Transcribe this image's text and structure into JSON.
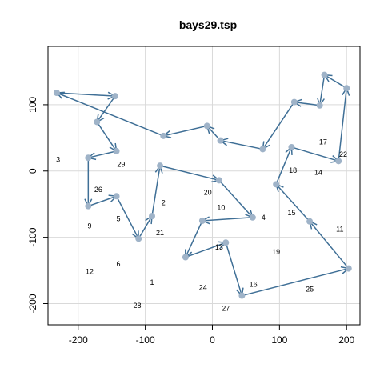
{
  "chart_data": {
    "type": "scatter",
    "title": "bays29.tsp",
    "xlabel": "",
    "ylabel": "",
    "xlim": [
      -245,
      220
    ],
    "ylim": [
      -232,
      188
    ],
    "xticks": [
      -200,
      -100,
      0,
      100,
      200
    ],
    "yticks": [
      -200,
      -100,
      0,
      100
    ],
    "xtick_labels": [
      "-200",
      "-100",
      "0",
      "100",
      "200"
    ],
    "ytick_labels": [
      "-200",
      "-100",
      "0",
      "100"
    ],
    "grid": true,
    "colors": {
      "route": "#3f6f96",
      "point": "#9fb3c8",
      "grid": "#d9d9d9"
    },
    "route": [
      [
        -232,
        118
      ],
      [
        -145,
        113
      ],
      [
        -172,
        74
      ],
      [
        -143,
        30
      ],
      [
        -185,
        20
      ],
      [
        -185,
        -53
      ],
      [
        -143,
        -38
      ],
      [
        -110,
        -102
      ],
      [
        -90,
        -68
      ],
      [
        -78,
        8
      ],
      [
        10,
        -14
      ],
      [
        60,
        -70
      ],
      [
        -15,
        -75
      ],
      [
        -40,
        -130
      ],
      [
        20,
        -108
      ],
      [
        44,
        -188
      ],
      [
        203,
        -147
      ],
      [
        145,
        -76
      ],
      [
        95,
        -20
      ],
      [
        118,
        36
      ],
      [
        188,
        15
      ],
      [
        200,
        125
      ],
      [
        167,
        145
      ],
      [
        160,
        99
      ],
      [
        122,
        104
      ],
      [
        75,
        33
      ],
      [
        12,
        46
      ],
      [
        -8,
        68
      ],
      [
        -73,
        53
      ],
      [
        -232,
        118
      ]
    ],
    "labels": [
      {
        "text": "1",
        "x": -90,
        "y": -168
      },
      {
        "text": "2",
        "x": -73,
        "y": -48
      },
      {
        "text": "3",
        "x": -230,
        "y": 17
      },
      {
        "text": "4",
        "x": 76,
        "y": -70
      },
      {
        "text": "5",
        "x": -140,
        "y": -72
      },
      {
        "text": "6",
        "x": -140,
        "y": -140
      },
      {
        "text": "9",
        "x": -183,
        "y": -83
      },
      {
        "text": "10",
        "x": 13,
        "y": -55
      },
      {
        "text": "11",
        "x": 190,
        "y": -88
      },
      {
        "text": "12",
        "x": -183,
        "y": -152
      },
      {
        "text": "13",
        "x": 10,
        "y": -115
      },
      {
        "text": "14",
        "x": 158,
        "y": -2
      },
      {
        "text": "15",
        "x": 118,
        "y": -63
      },
      {
        "text": "16",
        "x": 61,
        "y": -171
      },
      {
        "text": "17",
        "x": 165,
        "y": 44
      },
      {
        "text": "18",
        "x": 120,
        "y": 1
      },
      {
        "text": "19",
        "x": 95,
        "y": -122
      },
      {
        "text": "20",
        "x": -7,
        "y": -32
      },
      {
        "text": "21",
        "x": -78,
        "y": -93
      },
      {
        "text": "22",
        "x": 195,
        "y": 25
      },
      {
        "text": "24",
        "x": -14,
        "y": -176
      },
      {
        "text": "25",
        "x": 145,
        "y": -178
      },
      {
        "text": "26",
        "x": -170,
        "y": -28
      },
      {
        "text": "27",
        "x": 20,
        "y": -207
      },
      {
        "text": "28",
        "x": -112,
        "y": -203
      },
      {
        "text": "29",
        "x": -136,
        "y": 10
      }
    ]
  }
}
